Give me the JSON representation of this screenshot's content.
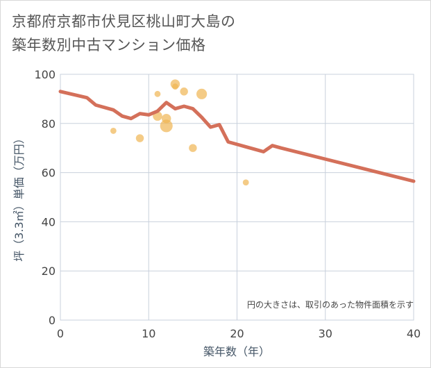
{
  "title_lines": [
    "京都府京都市伏見区桃山町大島の",
    "築年数別中古マンション価格"
  ],
  "chart_data": {
    "type": "scatter",
    "xlabel": "築年数（年）",
    "ylabel": "坪（3.3㎡）単価（万円）",
    "xlim": [
      0,
      40
    ],
    "ylim": [
      0,
      100
    ],
    "x_ticks": [
      0,
      10,
      20,
      30,
      40
    ],
    "y_ticks": [
      0,
      20,
      40,
      60,
      80,
      100
    ],
    "grid": true,
    "note": "円の大きさは、取引のあった物件面積を示す",
    "line_color": "#d4705a",
    "bubble_color": "#f0b552",
    "line": {
      "x": [
        0,
        3,
        4,
        6,
        7,
        8,
        9,
        10,
        11,
        12,
        13,
        14,
        15,
        16,
        17,
        18,
        19,
        20,
        21,
        22,
        23,
        24,
        25,
        30,
        35,
        40
      ],
      "y": [
        93,
        90.5,
        87.5,
        85.5,
        83,
        82,
        84,
        83.5,
        85,
        88.5,
        86,
        87,
        86,
        82.5,
        78.5,
        79.5,
        72.5,
        71.5,
        70.5,
        69.5,
        68.5,
        71,
        70,
        65.5,
        61,
        56.5
      ]
    },
    "bubbles": [
      {
        "x": 6,
        "y": 77,
        "size": 1
      },
      {
        "x": 9,
        "y": 74,
        "size": 2
      },
      {
        "x": 11,
        "y": 92,
        "size": 1
      },
      {
        "x": 11,
        "y": 83,
        "size": 3
      },
      {
        "x": 12,
        "y": 82,
        "size": 3
      },
      {
        "x": 12,
        "y": 79,
        "size": 6
      },
      {
        "x": 13,
        "y": 96,
        "size": 3
      },
      {
        "x": 13,
        "y": 95,
        "size": 1
      },
      {
        "x": 14,
        "y": 93,
        "size": 2
      },
      {
        "x": 15,
        "y": 70,
        "size": 2
      },
      {
        "x": 16,
        "y": 92,
        "size": 4
      },
      {
        "x": 21,
        "y": 56,
        "size": 1
      }
    ]
  }
}
